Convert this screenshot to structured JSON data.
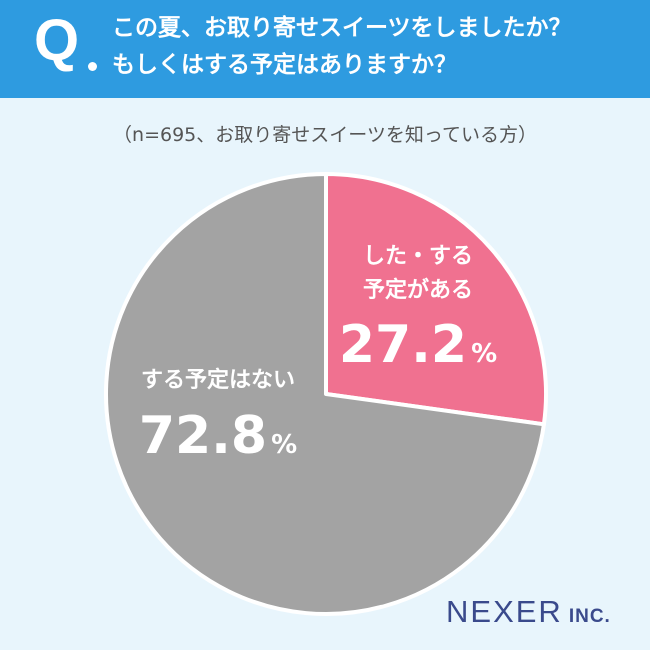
{
  "question": {
    "mark": "Q",
    "line1": "この夏、お取り寄せスイーツをしましたか？",
    "line2": "もしくはする予定はありますか？"
  },
  "sample_note": "（n=695、お取り寄せスイーツを知っている方）",
  "logo": {
    "brand": "NEXER",
    "suffix": "INC."
  },
  "chart_data": {
    "type": "pie",
    "title": "",
    "unit": "%",
    "slices": [
      {
        "label_lines": [
          "した・する",
          "予定がある"
        ],
        "value": 27.2,
        "display": "27.2",
        "color": "#f07190"
      },
      {
        "label_lines": [
          "する予定はない"
        ],
        "value": 72.8,
        "display": "72.8",
        "color": "#a3a3a3"
      }
    ],
    "start_angle_deg": 0,
    "direction": "clockwise"
  }
}
